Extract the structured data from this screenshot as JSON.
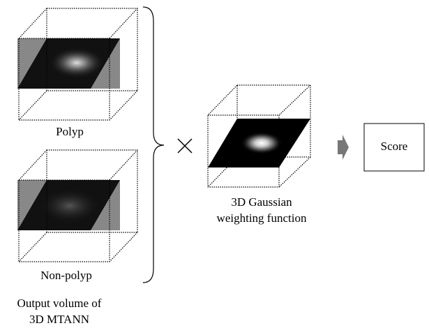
{
  "inputs": [
    {
      "label": "Polyp"
    },
    {
      "label": "Non-polyp"
    }
  ],
  "inputs_caption": [
    "Output volume of",
    "3D MTANN"
  ],
  "weighting": {
    "caption": [
      "3D Gaussian",
      "weighting function"
    ]
  },
  "output": {
    "label": "Score"
  }
}
